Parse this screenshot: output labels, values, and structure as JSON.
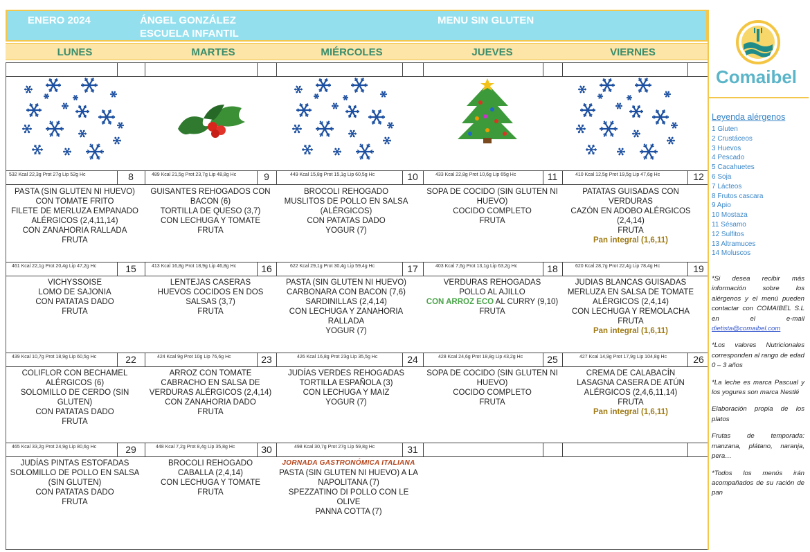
{
  "header": {
    "month": "ENERO 2024",
    "school_line1": "ÁNGEL GONZÁLEZ",
    "school_line2": "ESCUELA INFANTIL",
    "menu_type": "MENU SIN GLUTEN"
  },
  "days": [
    "LUNES",
    "MARTES",
    "MIÉRCOLES",
    "JUEVES",
    "VIERNES"
  ],
  "weeks": [
    {
      "cells": [
        {
          "day": "8",
          "nutrition": "532 Kcal 22,3g Prot 27g Lip 52g Hc",
          "lines": [
            "PASTA (SIN GLUTEN NI HUEVO)",
            "CON TOMATE FRITO",
            "FILETE DE MERLUZA EMPANADO",
            "ALÉRGICOS (2,4,11,14)",
            "CON ZANAHORIA RALLADA",
            "FRUTA"
          ]
        },
        {
          "day": "9",
          "nutrition": "489 Kcal 21,5g Prot 23,7g Lip 48,8g Hc",
          "lines": [
            "GUISANTES REHOGADOS CON",
            "BACON (6)",
            "TORTILLA DE QUESO (3,7)",
            "CON LECHUGA Y TOMATE",
            "FRUTA"
          ]
        },
        {
          "day": "10",
          "nutrition": "449 Kcal 15,8g Prot 15,1g Lip 60,5g Hc",
          "lines": [
            "BROCOLI REHOGADO",
            "MUSLITOS DE POLLO EN SALSA",
            "(ALÉRGICOS)",
            "CON PATATAS DADO",
            "YOGUR (7)"
          ]
        },
        {
          "day": "11",
          "nutrition": "433 Kcal 22,8g Prot 10,6g Lip 65g Hc",
          "lines": [
            "SOPA DE COCIDO (SIN GLUTEN NI",
            "HUEVO)",
            "COCIDO COMPLETO",
            "FRUTA"
          ]
        },
        {
          "day": "12",
          "nutrition": "410 Kcal 12,5g Prot 19,5g Lip 47,6g Hc",
          "lines": [
            "PATATAS GUISADAS CON VERDURAS",
            "CAZÓN EN ADOBO ALÉRGICOS",
            "(2,4,14)",
            "FRUTA"
          ],
          "pan": "Pan integral (1,6,11)"
        }
      ]
    },
    {
      "cells": [
        {
          "day": "15",
          "nutrition": "461 Kcal 22,1g Prot 20,4g Lip 47,2g Hc",
          "lines": [
            "VICHYSSOISE",
            "LOMO DE SAJONIA",
            "CON PATATAS DADO",
            "FRUTA"
          ]
        },
        {
          "day": "16",
          "nutrition": "413 Kcal 16,8g Prot 18,9g Lip 46,8g Hc",
          "lines": [
            "LENTEJAS CASERAS",
            "HUEVOS COCIDOS EN DOS",
            "SALSAS (3,7)",
            "FRUTA"
          ]
        },
        {
          "day": "17",
          "nutrition": "622 Kcal 29,1g Prot 30,4g Lip 59,4g Hc",
          "lines": [
            "PASTA (SIN GLUTEN NI HUEVO)",
            "CARBONARA CON BACON (7,6)",
            "SARDINILLAS (2,4,14)",
            "CON LECHUGA Y ZANAHORIA",
            "RALLADA",
            "YOGUR (7)"
          ]
        },
        {
          "day": "18",
          "nutrition": "403 Kcal 7,6g Prot 13,1g Lip 63,2g Hc",
          "lines": [
            "VERDURAS REHOGADAS",
            "POLLO AL AJILLO"
          ],
          "eco": "CON ARROZ ECO",
          "eco_rest": "AL CURRY (9,10)",
          "after": [
            "FRUTA"
          ]
        },
        {
          "day": "19",
          "nutrition": "620 Kcal 28,7g Prot 22,4g Lip 78,4g Hc",
          "lines": [
            "JUDIAS BLANCAS GUISADAS",
            "MERLUZA EN SALSA DE TOMATE",
            "ALÉRGICOS (2,4,14)",
            "CON LECHUGA Y REMOLACHA",
            "FRUTA"
          ],
          "pan": "Pan integral (1,6,11)"
        }
      ]
    },
    {
      "cells": [
        {
          "day": "22",
          "nutrition": "439 Kcal 10,7g Prot 18,9g Lip 60,5g Hc",
          "lines": [
            "COLIFLOR CON BECHAMEL",
            "ALÉRGICOS (6)",
            "SOLOMILLO DE CERDO (SIN",
            "GLUTEN)",
            "CON PATATAS DADO",
            "FRUTA"
          ]
        },
        {
          "day": "23",
          "nutrition": "424 Kcal 9g Prot 10g Lip 76,6g Hc",
          "lines": [
            "ARROZ CON TOMATE",
            "CABRACHO EN SALSA DE",
            "VERDURAS ALÉRGICOS (2,4,14)",
            "CON ZANAHORIA DADO",
            "FRUTA"
          ]
        },
        {
          "day": "24",
          "nutrition": "426 Kcal 16,8g Prot 23g Lip 35,5g Hc",
          "lines": [
            "JUDÍAS VERDES REHOGADAS",
            "TORTILLA ESPAÑOLA (3)",
            "CON LECHUGA Y MAIZ",
            "YOGUR (7)"
          ]
        },
        {
          "day": "25",
          "nutrition": "428 Kcal 24,6g Prot 18,8g Lip 43,2g Hc",
          "lines": [
            "SOPA DE COCIDO (SIN GLUTEN NI",
            "HUEVO)",
            "COCIDO COMPLETO",
            "FRUTA"
          ]
        },
        {
          "day": "26",
          "nutrition": "427 Kcal 14,9g Prot 17,9g Lip 104,8g Hc",
          "lines": [
            "CREMA DE CALABACÍN",
            "LASAGNA CASERA DE ATÚN",
            "ALÉRGICOS (2,4,6,11,14)",
            "FRUTA"
          ],
          "pan": "Pan integral (1,6,11)"
        }
      ]
    },
    {
      "cells": [
        {
          "day": "29",
          "nutrition": "465 Kcal 33,2g Prot 24,9g Lip 80,6g Hc",
          "lines": [
            "JUDÍAS PINTAS ESTOFADAS",
            "SOLOMILLO DE POLLO EN SALSA",
            "(SIN GLUTEN)",
            "CON PATATAS DADO",
            "FRUTA"
          ]
        },
        {
          "day": "30",
          "nutrition": "448 Kcal 7,2g Prot 8,4g Lip 35,8g Hc",
          "lines": [
            "BROCOLI REHOGADO",
            "CABALLA (2,4,14)",
            "CON LECHUGA Y TOMATE",
            "FRUTA"
          ]
        },
        {
          "day": "31",
          "nutrition": "498 Kcal 30,7g Prot 27g Lip 59,8g Hc",
          "jornada": "JORNADA GASTRONÓMICA ITALIANA",
          "lines": [
            "PASTA (SIN GLUTEN NI HUEVO) A LA",
            "NAPOLITANA (7)",
            "SPEZZATINO DI POLLO CON LE OLIVE",
            "PANNA COTTA (7)"
          ]
        }
      ]
    }
  ],
  "sidebar": {
    "logo": "Comaibel",
    "legend_title": "Leyenda alérgenos",
    "allergens": [
      "1 Gluten",
      "2 Crustáceos",
      "3 Huevos",
      "4 Pescado",
      "5 Cacahuetes",
      "6 Soja",
      "7 Lácteos",
      "8 Frutos cascara",
      "9 Apio",
      "10 Mostaza",
      "11 Sésamo",
      "12 Sulfitos",
      "13 Altramuces",
      "14 Moluscos"
    ],
    "note1": "*Si desea recibir más información sobre los alérgenos y el menú pueden contactar con COMAIBEL S.L en el e-mail",
    "email": "dietista@comaibel.com",
    "note2": "*Los valores Nutricionales corresponden al rango de edad 0 – 3 años",
    "note3": "*La leche es marca Pascual y los yogures son marca Nestlé",
    "note4": "Elaboración propia de los platos",
    "note5": "Frutas de temporada: manzana, plátano, naranja, pera…",
    "note6": "*Todos los menús irán acompañados de su ración de pan"
  },
  "colors": {
    "header_bg": "#93dfee",
    "days_bg": "#fde4a7",
    "border_gold": "#f3c64c",
    "day_text": "#3a8d6c",
    "legend_blue": "#3a86c8",
    "pan_gold": "#a07a13",
    "snow_blue": "#1c4fa0"
  }
}
